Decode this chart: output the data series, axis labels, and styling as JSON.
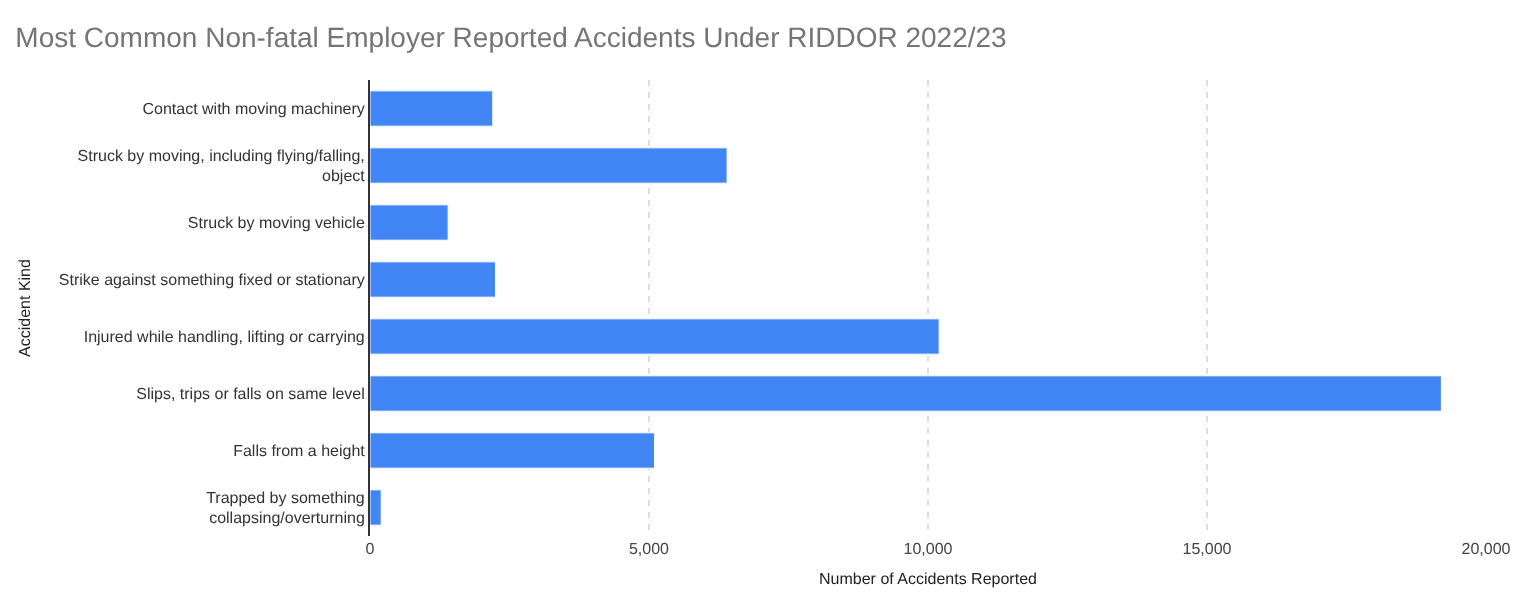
{
  "chart_data": {
    "type": "bar",
    "orientation": "horizontal",
    "title": "Most Common Non-fatal Employer Reported Accidents Under RIDDOR 2022/23",
    "xlabel": "Number of Accidents Reported",
    "ylabel": "Accident Kind",
    "categories": [
      "Contact with moving machinery",
      "Struck by moving, including flying/falling,\nobject",
      "Struck by moving vehicle",
      "Strike against something fixed or stationary",
      "Injured while handling, lifting or carrying",
      "Slips, trips or falls on same level",
      "Falls from a height",
      "Trapped by something\ncollapsing/overturning"
    ],
    "values": [
      2200,
      6400,
      1400,
      2250,
      10200,
      19200,
      5100,
      200
    ],
    "color": "#4285f4",
    "xlim": [
      0,
      20000
    ],
    "xticks": [
      0,
      {
        "value": 5000,
        "label": "5,000"
      },
      {
        "value": 10000,
        "label": "10,000"
      },
      {
        "value": 15000,
        "label": "15,000"
      },
      {
        "value": 20000,
        "label": "20,000"
      }
    ],
    "grid": "x",
    "legend": false
  }
}
